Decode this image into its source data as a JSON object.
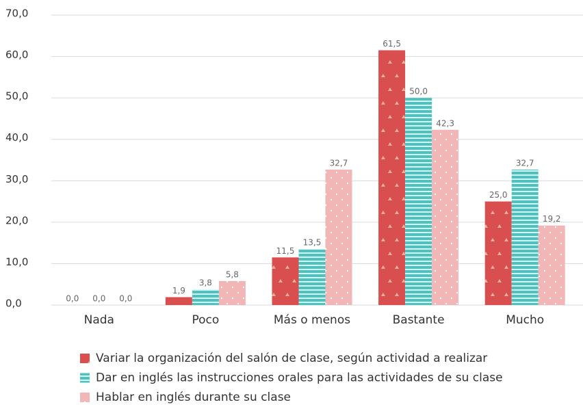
{
  "chart_data": {
    "type": "bar",
    "categories": [
      "Nada",
      "Poco",
      "Más o menos",
      "Bastante",
      "Mucho"
    ],
    "series": [
      {
        "name": "Variar la organización del salón de clase, según actividad a realizar",
        "color": "#d94f4f",
        "values": [
          0,
          1.9,
          11.5,
          61.5,
          25.0
        ],
        "value_labels": [
          "0,0",
          "1,9",
          "11,5",
          "61,5",
          "25,0"
        ]
      },
      {
        "name": "Dar en inglés las instrucciones orales para las actividades de su clase",
        "color": "#4cc3bf",
        "values": [
          0,
          3.8,
          13.5,
          50.0,
          32.7
        ],
        "value_labels": [
          "0,0",
          "3,8",
          "13,5",
          "50,0",
          "32,7"
        ]
      },
      {
        "name": "Hablar en inglés durante su clase",
        "color": "#f2b6b6",
        "values": [
          0,
          5.8,
          32.7,
          42.3,
          19.2
        ],
        "value_labels": [
          "0,0",
          "5,8",
          "32,7",
          "42,3",
          "19,2"
        ]
      }
    ],
    "ylim": [
      0,
      70
    ],
    "yticks": [
      {
        "value": 0,
        "label": "0,0"
      },
      {
        "value": 10,
        "label": "10,0"
      },
      {
        "value": 20,
        "label": "20,0"
      },
      {
        "value": 30,
        "label": "30,0"
      },
      {
        "value": 40,
        "label": "40,0"
      },
      {
        "value": 50,
        "label": "50,0"
      },
      {
        "value": 60,
        "label": "60,0"
      },
      {
        "value": 70,
        "label": "70,0"
      }
    ],
    "grid": true
  }
}
